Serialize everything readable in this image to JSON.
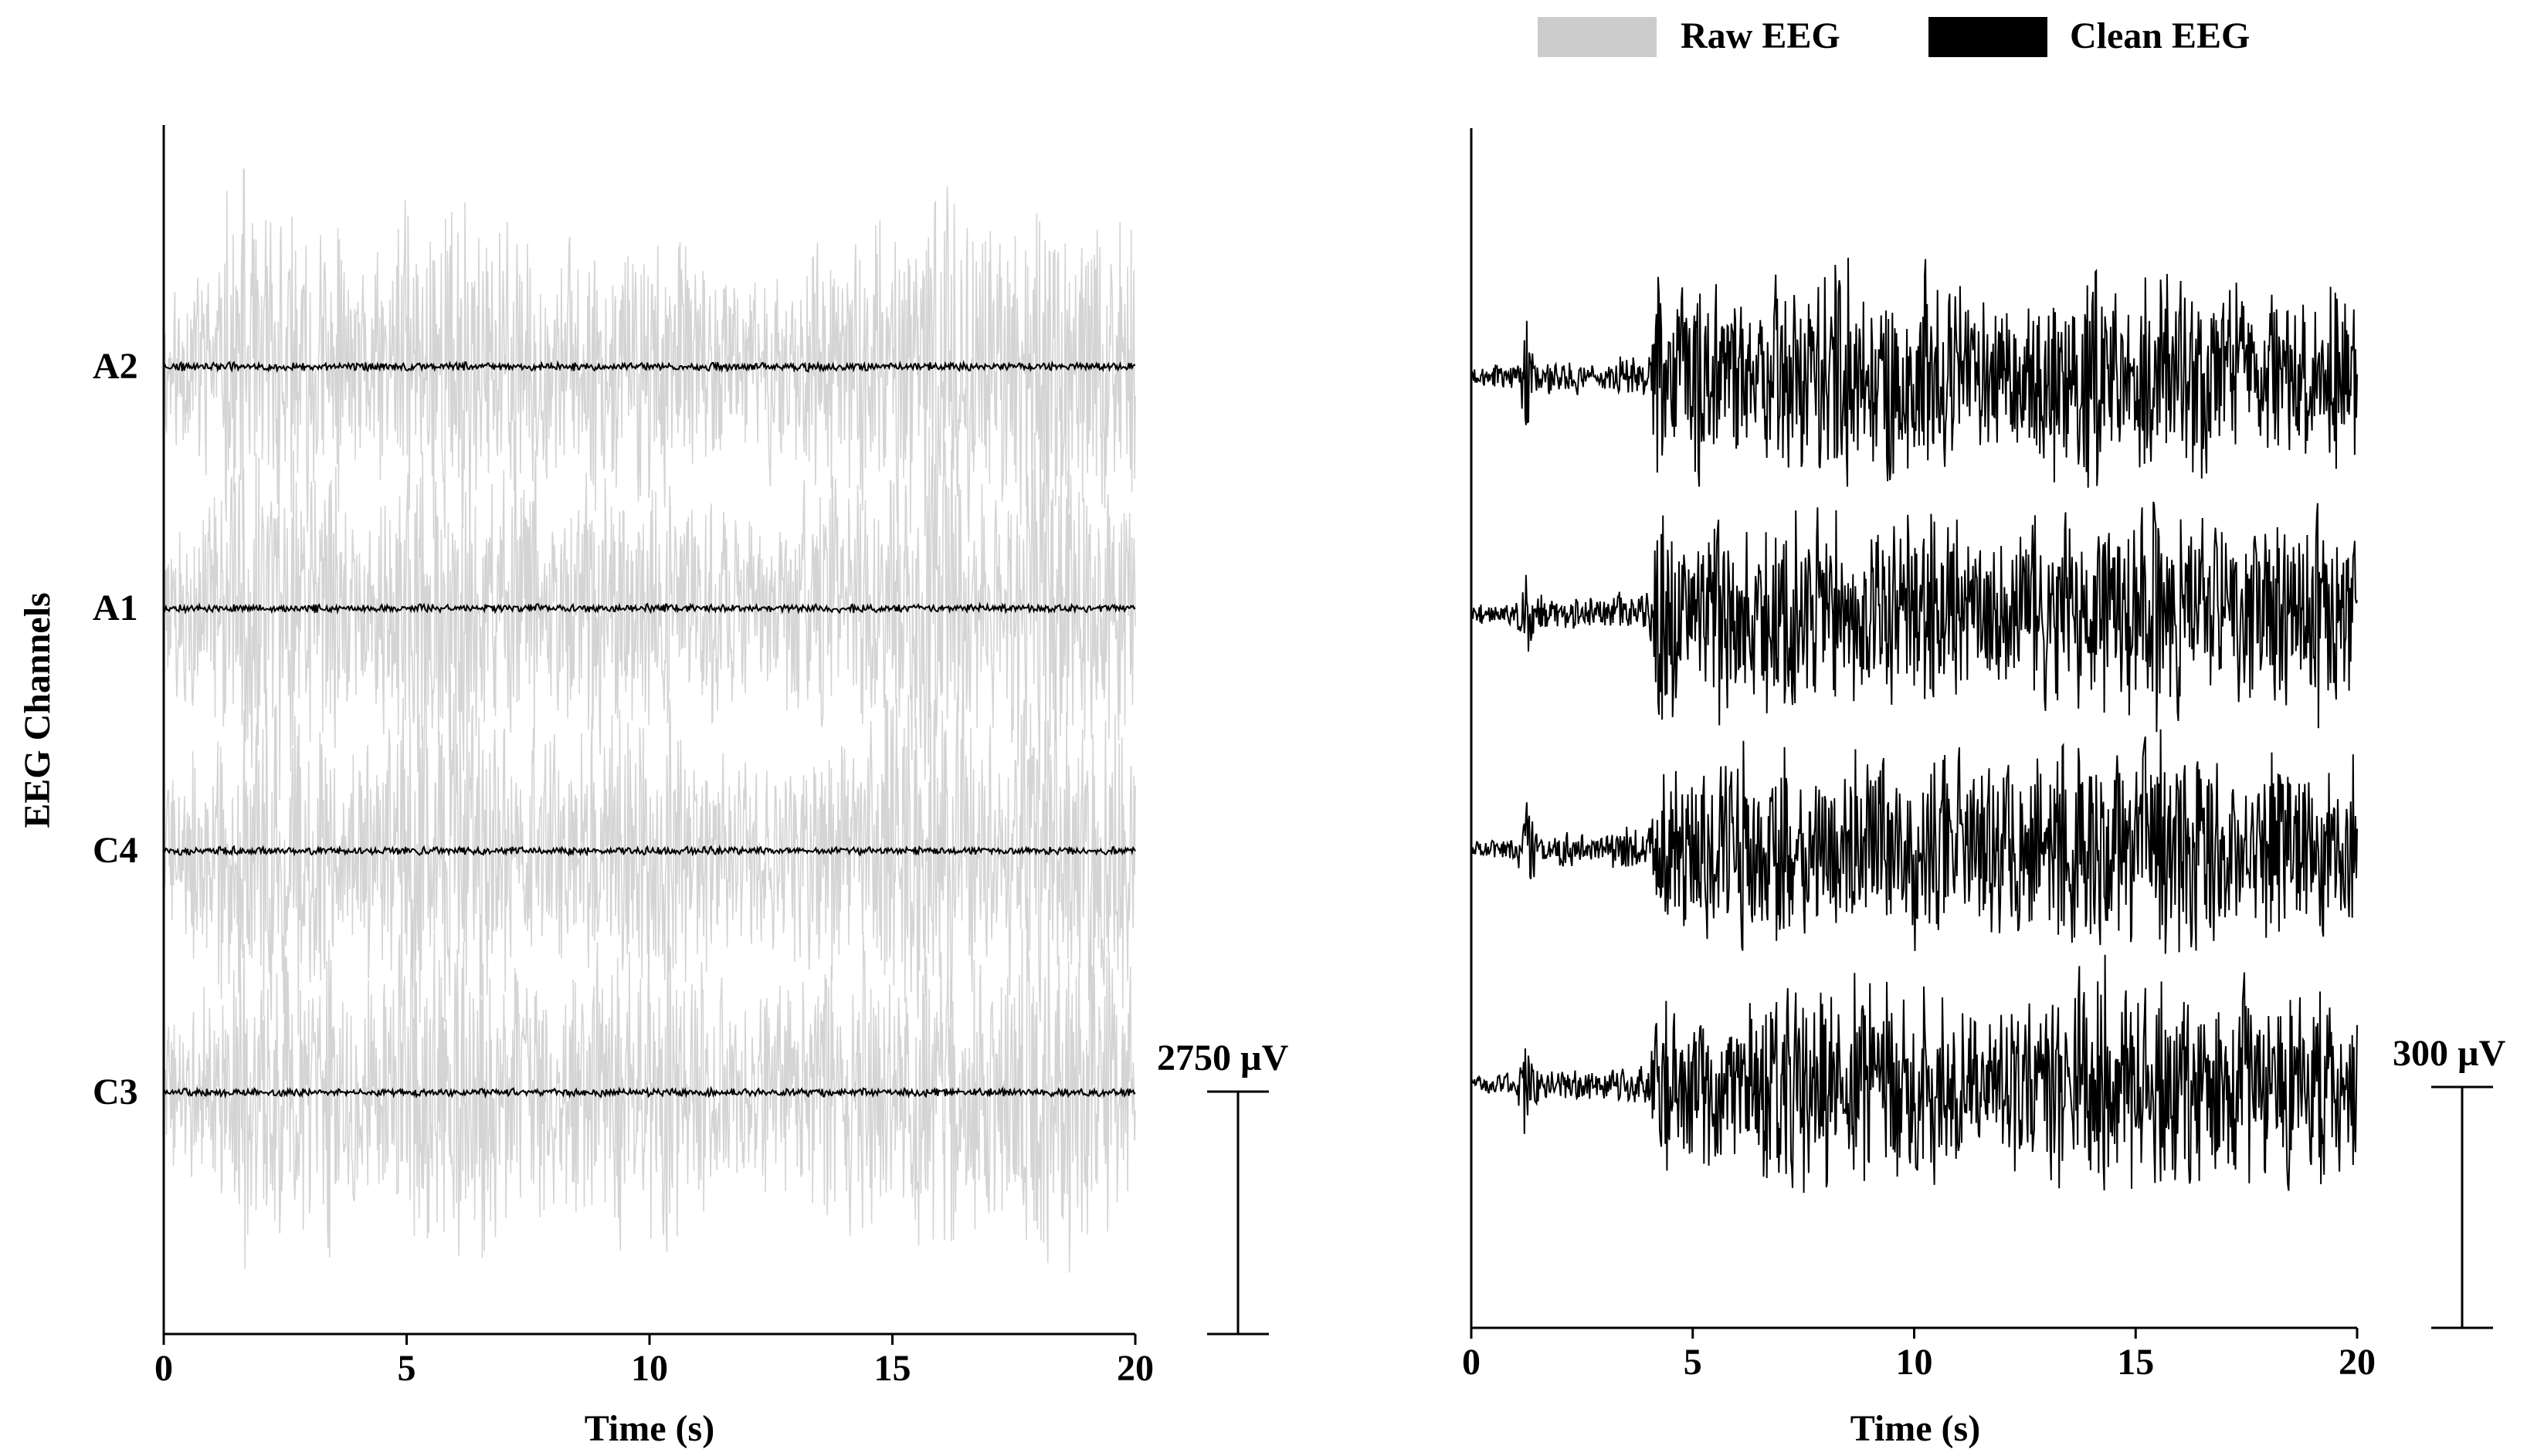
{
  "legend": {
    "items": [
      {
        "label": "Raw EEG",
        "color": "#cccccc"
      },
      {
        "label": "Clean EEG",
        "color": "#000000"
      }
    ],
    "placement": "top-right"
  },
  "chart_data": [
    {
      "type": "line",
      "panel": "left",
      "xlabel": "Time (s)",
      "ylabel": "EEG Channels",
      "xlim": [
        0,
        20
      ],
      "xticks": [
        "0",
        "5",
        "10",
        "15",
        "20"
      ],
      "channels": [
        "A2",
        "A1",
        "C4",
        "C3"
      ],
      "grid": false,
      "scale_bar_label": "2750 µV",
      "scale_bar_value_uV": 2750,
      "series": [
        {
          "name": "Raw EEG",
          "color": "#cccccc",
          "envelope_peak_uV": [
            {
              "t": 0.0,
              "amp": 1000
            },
            {
              "t": 1.5,
              "amp": 2400
            },
            {
              "t": 2.5,
              "amp": 3000
            },
            {
              "t": 4.0,
              "amp": 1600
            },
            {
              "t": 5.5,
              "amp": 2800
            },
            {
              "t": 6.5,
              "amp": 2600
            },
            {
              "t": 8.0,
              "amp": 1800
            },
            {
              "t": 10.0,
              "amp": 2400
            },
            {
              "t": 12.0,
              "amp": 1500
            },
            {
              "t": 14.5,
              "amp": 2200
            },
            {
              "t": 16.0,
              "amp": 2900
            },
            {
              "t": 17.0,
              "amp": 1900
            },
            {
              "t": 18.0,
              "amp": 3000
            },
            {
              "t": 19.5,
              "amp": 2500
            },
            {
              "t": 20.0,
              "amp": 2000
            }
          ]
        },
        {
          "name": "Clean EEG",
          "color": "#000000",
          "envelope_peak_uV": [
            {
              "t": 0.0,
              "amp": 60
            },
            {
              "t": 10.0,
              "amp": 60
            },
            {
              "t": 20.0,
              "amp": 60
            }
          ]
        }
      ]
    },
    {
      "type": "line",
      "panel": "right",
      "xlabel": "Time (s)",
      "xlim": [
        0,
        20
      ],
      "xticks": [
        "0",
        "5",
        "10",
        "15",
        "20"
      ],
      "channels": [
        "A2",
        "A1",
        "C4",
        "C3"
      ],
      "grid": false,
      "scale_bar_label": "300 µV",
      "scale_bar_value_uV": 300,
      "series": [
        {
          "name": "Clean EEG",
          "color": "#000000",
          "envelope_peak_uV": [
            {
              "t": 0.0,
              "amp": 15
            },
            {
              "t": 1.0,
              "amp": 20
            },
            {
              "t": 1.2,
              "amp": 100
            },
            {
              "t": 1.5,
              "amp": 30
            },
            {
              "t": 3.0,
              "amp": 25
            },
            {
              "t": 3.3,
              "amp": 35
            },
            {
              "t": 4.0,
              "amp": 40
            },
            {
              "t": 4.2,
              "amp": 160
            },
            {
              "t": 10.0,
              "amp": 180
            },
            {
              "t": 12.0,
              "amp": 150
            },
            {
              "t": 14.0,
              "amp": 190
            },
            {
              "t": 20.0,
              "amp": 150
            }
          ]
        }
      ]
    }
  ]
}
